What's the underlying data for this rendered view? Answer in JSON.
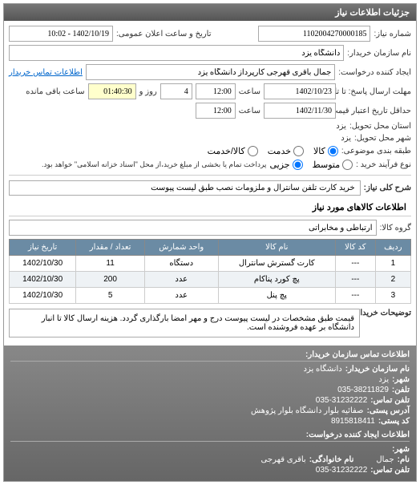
{
  "panel": {
    "title": "جزئیات اطلاعات نیاز"
  },
  "form": {
    "need_no_label": "شماره نیاز:",
    "need_no": "1102004270000185",
    "announce_label": "تاریخ و ساعت اعلان عمومی:",
    "announce_value": "1402/10/19 - 10:02",
    "buyer_label": "نام سازمان خریدار:",
    "buyer_value": "دانشگاه یزد",
    "creator_label": "ایجاد کننده درخواست:",
    "creator_value": "جمال باقری قهرجی کارپرداز دانشگاه یزد",
    "contact_link": "اطلاعات تماس خریدار",
    "deadline_label": "مهلت ارسال پاسخ: تا تاریخ:",
    "deadline_date": "1402/10/23",
    "time_label": "ساعت",
    "deadline_time": "12:00",
    "remaining_days": "4",
    "remaining_days_label": "روز و",
    "remaining_time": "01:40:30",
    "remaining_suffix": "ساعت باقی مانده",
    "validity_label": "حداقل تاریخ اعتبار قیمت: تا تاریخ:",
    "validity_date": "1402/11/30",
    "validity_time": "12:00",
    "province_label": "استان محل تحویل:",
    "province_value": "یزد",
    "city_label": "شهر محل تحویل:",
    "city_value": "یزد",
    "category_label": "طبقه بندی موضوعی:",
    "cat_goods": "کالا",
    "cat_service": "خدمت",
    "cat_both": "کالا/خدمت",
    "process_label": "نوع فرآیند خرید :",
    "proc_medium": "متوسط",
    "proc_minor": "جزیی",
    "process_note": "پرداخت تمام یا بخشی از مبلغ خرید،از محل \"اسناد خزانه اسلامی\" خواهد بود."
  },
  "desc": {
    "label": "شرح کلی نیاز:",
    "value": "خرید کارت تلفن سانترال و ملزومات نصب طبق لیست پیوست"
  },
  "goods": {
    "title": "اطلاعات کالاهای مورد نیاز",
    "group_label": "گروه کالا:",
    "group_value": "ارتباطی و مخابراتی",
    "columns": [
      "ردیف",
      "کد کالا",
      "نام کالا",
      "واحد شمارش",
      "تعداد / مقدار",
      "تاریخ نیاز"
    ],
    "rows": [
      [
        "1",
        "---",
        "کارت گسترش سانترال",
        "دستگاه",
        "11",
        "1402/10/30"
      ],
      [
        "2",
        "---",
        "پچ کورد پناکام",
        "عدد",
        "200",
        "1402/10/30"
      ],
      [
        "3",
        "---",
        "پچ پنل",
        "عدد",
        "5",
        "1402/10/30"
      ]
    ]
  },
  "note": {
    "label": "توضیحات خریدار:",
    "text": "قیمت طبق مشخصات در لیست پیوست درج و مهر امضا بارگذاری گردد. هزینه ارسال کالا تا انبار دانشگاه بر عهده فروشنده است."
  },
  "contact1": {
    "title": "اطلاعات تماس سازمان خریدار:",
    "org_label": "نام سازمان خریدار:",
    "org": "دانشگاه یزد",
    "city_label": "شهر:",
    "city": "یزد",
    "phone_label": "تلفن:",
    "phone": "035-38211829",
    "fax_label": "تلفن تماس:",
    "fax": "035-31232222",
    "addr_label": "آدرس پستی:",
    "addr": "صفائیه بلوار دانشگاه بلوار پژوهش",
    "post_label": "کد پستی:",
    "post": "8915818411"
  },
  "contact2": {
    "title": "اطلاعات ایجاد کننده درخواست:",
    "city_label": "شهر:",
    "city": "",
    "family_label": "نام خانوادگی:",
    "family": "باقری قهرجی",
    "phone_label": "تلفن تماس:",
    "phone": "035-31232222",
    "name_label": "نام:",
    "name": "جمال"
  }
}
